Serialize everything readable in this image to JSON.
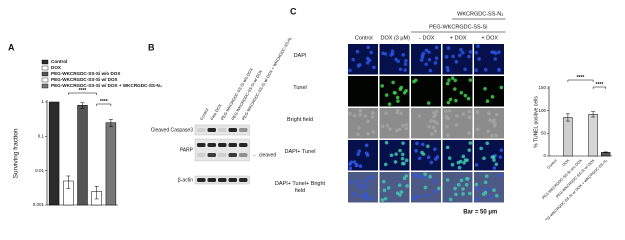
{
  "panel_labels": [
    "A",
    "B",
    "C"
  ],
  "chart_data": [
    {
      "type": "bar",
      "y_label": "Surviving fraction",
      "log_scale": true,
      "categories": [
        "Control",
        "DOX",
        "PEG-WKCRGDC-SS-Si w/o DOX",
        "PEG-WKCRGDC-SS-Si w/ DOX",
        "PEG-WKCRGDC-SS-Si w/ DOX + WKCRGDC-SS-N₃"
      ],
      "values": [
        1,
        0.005,
        0.8,
        0.0025,
        0.25
      ],
      "errors": [
        0,
        0.002,
        0.15,
        0.001,
        0.06
      ],
      "colors": [
        "#2b2b2b",
        "#ffffff",
        "#555555",
        "#ffffff",
        "#777777"
      ],
      "ylim": [
        0.001,
        1
      ],
      "yticks": [
        1,
        0.1,
        0.01,
        0.001
      ],
      "annotations": [
        "****",
        "****"
      ]
    },
    {
      "type": "bar",
      "y_label": "% TUNEL positive cells",
      "categories": [
        "Control",
        "DOX",
        "PEG-WKCRGDC-SS-Si w/o DOX",
        "PEG-WKCRGDC-SS-Si w/ DOX",
        "PEG-WKCRGDC-SS-Si w/ DOX + WKCRGDC-SS-N₃"
      ],
      "values": [
        0,
        85,
        0,
        92,
        8
      ],
      "errors": [
        0,
        8,
        0,
        6,
        1
      ],
      "colors": [
        "#dddddd",
        "#cfcfcf",
        "#dddddd",
        "#d6d6d6",
        "#555555"
      ],
      "ylim": [
        0,
        150
      ],
      "yticks": [
        0,
        50,
        100,
        150
      ],
      "annotations": [
        "****",
        "****"
      ]
    }
  ],
  "blot": {
    "lanes": [
      "Control",
      "Free DOX",
      "PEG-WKCRGDC-SS-Si w/o DOX",
      "PEG-WKCRGDC-SS-Si w/ DOX",
      "PEG-WKCRGDC-SS-Si w/ DOX + WKCRGDC-SS-N₃"
    ],
    "rows": [
      "Cleaved Caspase3",
      "PARP",
      "β-actin"
    ],
    "annotation": "← cleaved"
  },
  "microscopy": {
    "group_header": "PEG-WKCRGDC-SS-Si",
    "outer_header": "WKCRGDC-SS-N₃",
    "columns": [
      "Control",
      "DOX (3 μM)",
      "- DOX",
      "+ DOX",
      "+ DOX"
    ],
    "rows": [
      "DAPI",
      "Tunel",
      "Bright field",
      "DAPI+ Tunel",
      "DAPI+ Tunel+ Bright field"
    ],
    "scale_bar": "Bar = 50 μm"
  }
}
